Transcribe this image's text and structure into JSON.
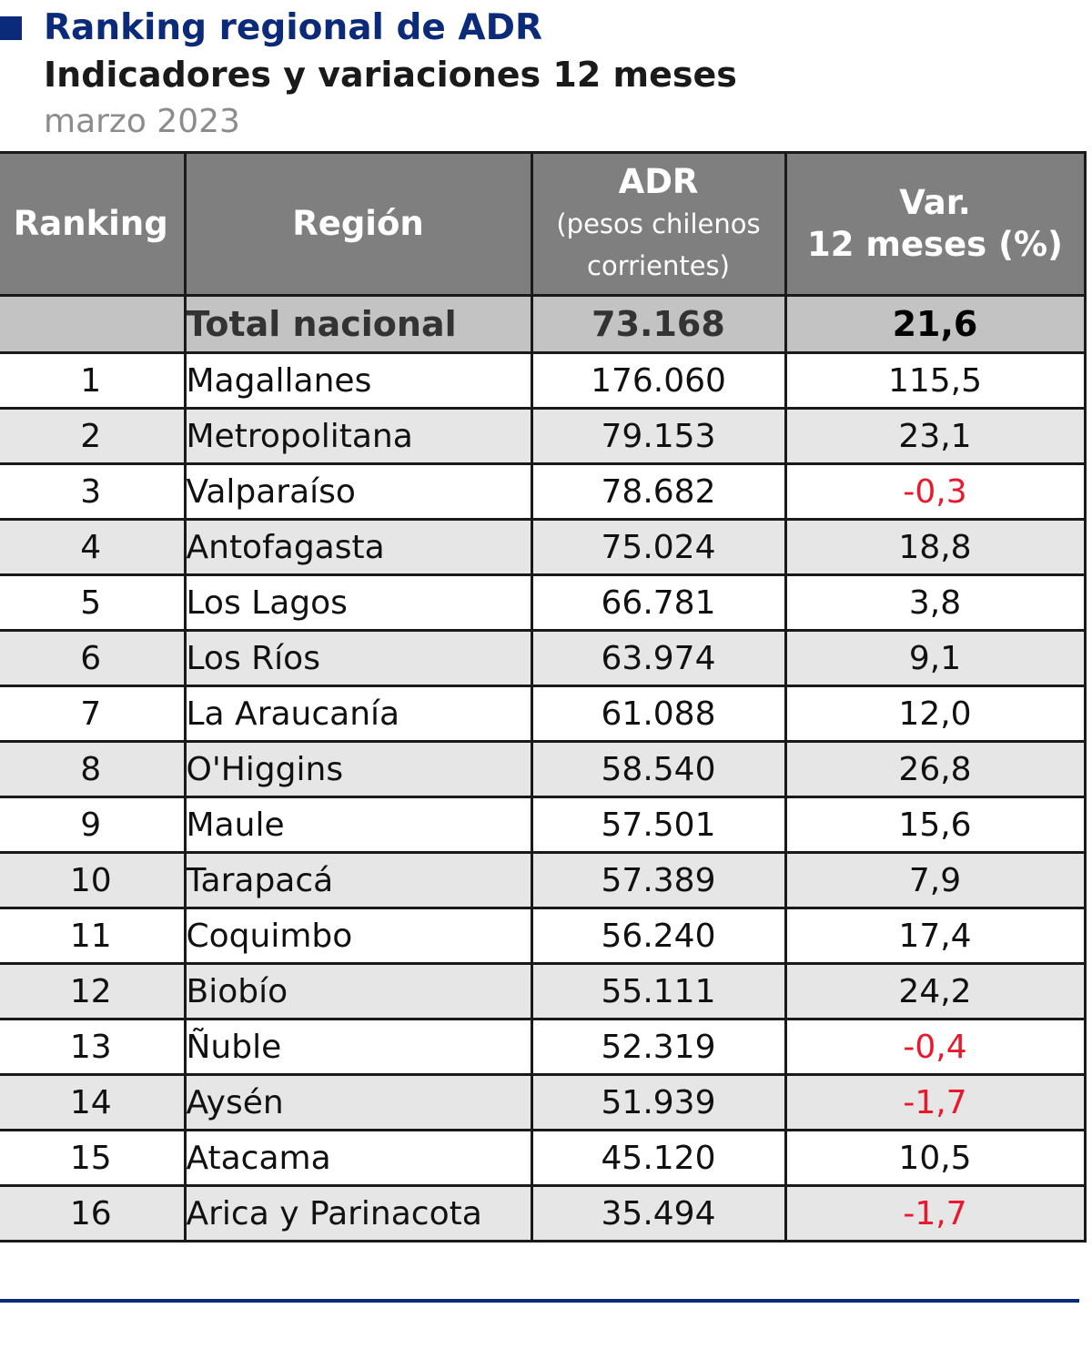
{
  "colors": {
    "title_blue": "#0b2a7a",
    "header_bg": "#7f7f7f",
    "total_bg": "#c3c3c3",
    "negative": "#e8192c",
    "rule": "#0b2a7a"
  },
  "title": "Ranking regional de ADR",
  "subtitle": "Indicadores y variaciones 12 meses",
  "period": "marzo 2023",
  "table": {
    "headers": {
      "ranking": "Ranking",
      "region": "Región",
      "adr": "ADR",
      "adr_sub_1": "(pesos chilenos",
      "adr_sub_2": "corrientes)",
      "var_1": "Var.",
      "var_2": "12 meses (%)"
    },
    "total": {
      "rank": "",
      "region": "Total nacional",
      "adr": "73.168",
      "var": "21,6"
    },
    "rows": [
      {
        "rank": "1",
        "region": "Magallanes",
        "adr": "176.060",
        "var": "115,5",
        "negative": false
      },
      {
        "rank": "2",
        "region": "Metropolitana",
        "adr": "79.153",
        "var": "23,1",
        "negative": false
      },
      {
        "rank": "3",
        "region": "Valparaíso",
        "adr": "78.682",
        "var": "-0,3",
        "negative": true
      },
      {
        "rank": "4",
        "region": "Antofagasta",
        "adr": "75.024",
        "var": "18,8",
        "negative": false
      },
      {
        "rank": "5",
        "region": "Los Lagos",
        "adr": "66.781",
        "var": "3,8",
        "negative": false
      },
      {
        "rank": "6",
        "region": "Los Ríos",
        "adr": "63.974",
        "var": "9,1",
        "negative": false
      },
      {
        "rank": "7",
        "region": "La Araucanía",
        "adr": "61.088",
        "var": "12,0",
        "negative": false
      },
      {
        "rank": "8",
        "region": "O'Higgins",
        "adr": "58.540",
        "var": "26,8",
        "negative": false
      },
      {
        "rank": "9",
        "region": "Maule",
        "adr": "57.501",
        "var": "15,6",
        "negative": false
      },
      {
        "rank": "10",
        "region": "Tarapacá",
        "adr": "57.389",
        "var": "7,9",
        "negative": false
      },
      {
        "rank": "11",
        "region": "Coquimbo",
        "adr": "56.240",
        "var": "17,4",
        "negative": false
      },
      {
        "rank": "12",
        "region": "Biobío",
        "adr": "55.111",
        "var": "24,2",
        "negative": false
      },
      {
        "rank": "13",
        "region": "Ñuble",
        "adr": "52.319",
        "var": "-0,4",
        "negative": true
      },
      {
        "rank": "14",
        "region": "Aysén",
        "adr": "51.939",
        "var": "-1,7",
        "negative": true
      },
      {
        "rank": "15",
        "region": "Atacama",
        "adr": "45.120",
        "var": "10,5",
        "negative": false
      },
      {
        "rank": "16",
        "region": "Arica y Parinacota",
        "adr": "35.494",
        "var": "-1,7",
        "negative": true
      }
    ]
  }
}
